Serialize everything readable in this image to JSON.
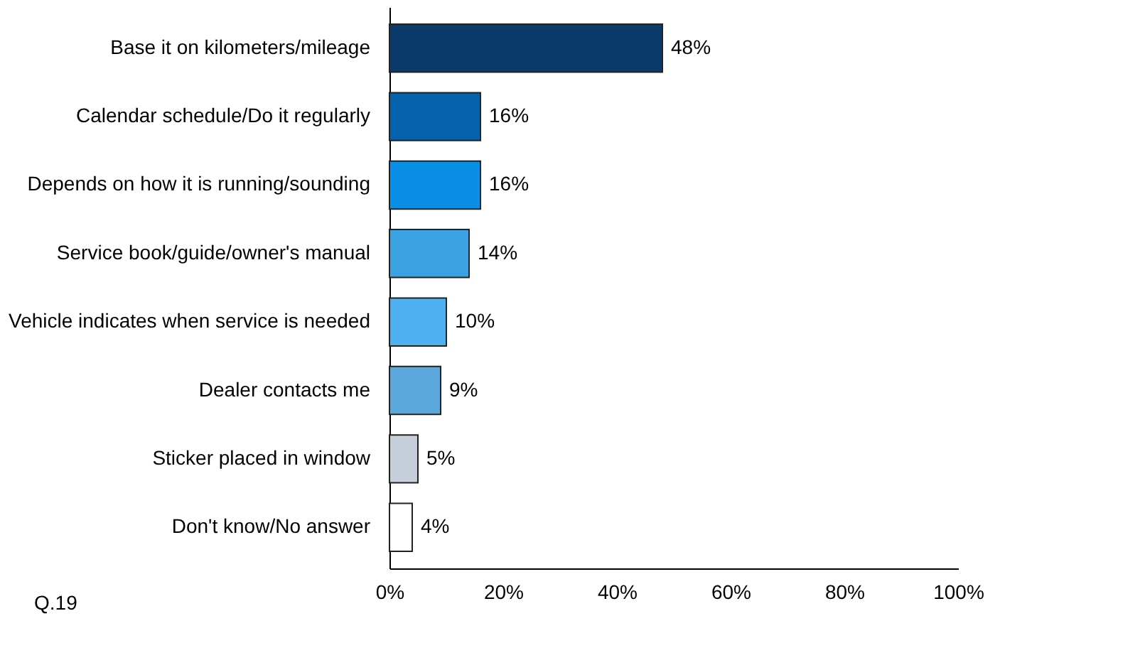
{
  "chart_data": {
    "type": "bar",
    "orientation": "horizontal",
    "categories": [
      "Base it on kilometers/mileage",
      "Calendar schedule/Do it regularly",
      "Depends on how it is running/sounding",
      "Service book/guide/owner's manual",
      "Vehicle indicates when service is needed",
      "Dealer contacts me",
      "Sticker placed in window",
      "Don't know/No answer"
    ],
    "values": [
      48,
      16,
      16,
      14,
      10,
      9,
      5,
      4
    ],
    "colors": [
      "#0b3b6b",
      "#0562ad",
      "#0a8fe6",
      "#3ba3e2",
      "#4fb0f0",
      "#5ba9dc",
      "#c6ceda",
      "#ffffff"
    ],
    "value_labels": [
      "48%",
      "16%",
      "16%",
      "14%",
      "10%",
      "9%",
      "5%",
      "4%"
    ],
    "xlim": [
      0,
      100
    ],
    "xticks": [
      {
        "value": 0,
        "label": "0%"
      },
      {
        "value": 20,
        "label": "20%"
      },
      {
        "value": 40,
        "label": "40%"
      },
      {
        "value": 60,
        "label": "60%"
      },
      {
        "value": 80,
        "label": "80%"
      },
      {
        "value": 100,
        "label": "100%"
      }
    ],
    "grid": false,
    "annotations": [
      "Q.19"
    ]
  }
}
